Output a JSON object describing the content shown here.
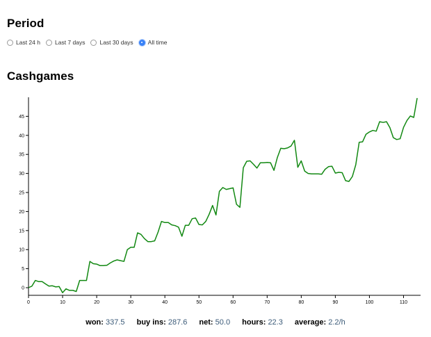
{
  "period": {
    "title": "Period",
    "options": [
      {
        "label": "Last 24 h",
        "checked": false
      },
      {
        "label": "Last 7 days",
        "checked": false
      },
      {
        "label": "Last 30 days",
        "checked": false
      },
      {
        "label": "All time",
        "checked": true
      }
    ]
  },
  "cashgames": {
    "title": "Cashgames"
  },
  "chart_data": {
    "type": "line",
    "title": "",
    "xlabel": "",
    "ylabel": "",
    "xlim": [
      0,
      115
    ],
    "ylim": [
      -2,
      50
    ],
    "xticks": [
      0,
      10,
      20,
      30,
      40,
      50,
      60,
      70,
      80,
      90,
      100,
      110
    ],
    "yticks": [
      0,
      5,
      10,
      15,
      20,
      25,
      30,
      35,
      40,
      45
    ],
    "grid": false,
    "line_color": "#118811",
    "x": [
      0,
      1,
      2,
      3,
      4,
      5,
      6,
      7,
      8,
      9,
      10,
      11,
      12,
      13,
      14,
      15,
      16,
      17,
      18,
      19,
      20,
      21,
      22,
      23,
      24,
      25,
      26,
      27,
      28,
      29,
      30,
      31,
      32,
      33,
      34,
      35,
      36,
      37,
      38,
      39,
      40,
      41,
      42,
      43,
      44,
      45,
      46,
      47,
      48,
      49,
      50,
      51,
      52,
      53,
      54,
      55,
      56,
      57,
      58,
      59,
      60,
      61,
      62,
      63,
      64,
      65,
      66,
      67,
      68,
      69,
      70,
      71,
      72,
      73,
      74,
      75,
      76,
      77,
      78,
      79,
      80,
      81,
      82,
      83,
      84,
      85,
      86,
      87,
      88,
      89,
      90,
      91,
      92,
      93,
      94,
      95,
      96,
      97,
      98,
      99,
      100,
      101,
      102,
      103,
      104,
      105,
      106,
      107,
      108,
      109,
      110,
      111,
      112,
      113,
      114
    ],
    "values": [
      0,
      0.4,
      1.9,
      1.6,
      1.6,
      1.0,
      0.4,
      0.5,
      0.2,
      0.3,
      -1.3,
      -0.3,
      -0.7,
      -0.7,
      -1.0,
      1.9,
      1.9,
      1.9,
      6.9,
      6.3,
      6.2,
      5.8,
      5.8,
      5.9,
      6.5,
      7.0,
      7.3,
      7.1,
      6.9,
      10.0,
      10.6,
      10.6,
      14.4,
      14.0,
      12.9,
      12.1,
      12.1,
      12.3,
      14.6,
      17.4,
      17.1,
      17.1,
      16.5,
      16.3,
      15.9,
      13.5,
      16.4,
      16.4,
      18.1,
      18.3,
      16.6,
      16.5,
      17.4,
      19.3,
      21.6,
      19.1,
      25.3,
      26.3,
      25.8,
      26.0,
      26.2,
      21.9,
      21.1,
      31.5,
      33.2,
      33.3,
      32.4,
      31.4,
      32.8,
      32.8,
      32.9,
      32.8,
      30.8,
      34.2,
      36.6,
      36.5,
      36.7,
      37.2,
      38.7,
      31.6,
      33.3,
      30.6,
      30.0,
      29.9,
      29.9,
      29.9,
      29.8,
      31.1,
      31.8,
      31.9,
      30.1,
      30.3,
      30.2,
      28.1,
      27.9,
      29.2,
      32.3,
      38.2,
      38.3,
      40.3,
      40.9,
      41.3,
      41.1,
      43.6,
      43.4,
      43.6,
      42.0,
      39.4,
      38.9,
      39.1,
      42.1,
      43.9,
      45.1,
      44.7,
      49.8
    ]
  },
  "stats": [
    {
      "label": "won:",
      "value": "337.5"
    },
    {
      "label": "buy ins:",
      "value": "287.6"
    },
    {
      "label": "net:",
      "value": "50.0"
    },
    {
      "label": "hours:",
      "value": "22.3"
    },
    {
      "label": "average:",
      "value": "2.2/h"
    }
  ]
}
